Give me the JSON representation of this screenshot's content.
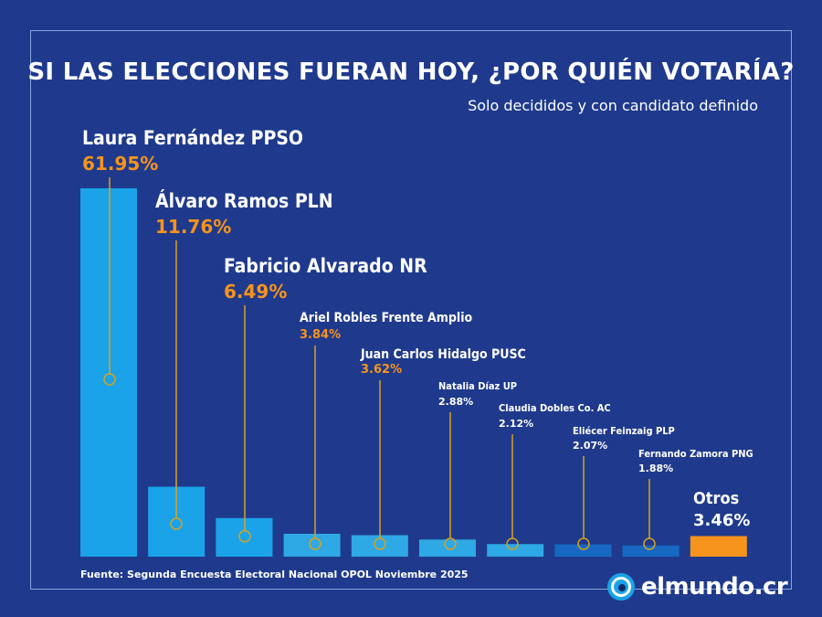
{
  "title": "SI LAS ELECCIONES FUERAN HOY, ¿POR QUIÉN VOTARÍA?",
  "subtitle": "Solo decididos y con candidato definido",
  "source": "Fuente: Segunda Encuesta Electoral Nacional OPOL Noviembre 2025",
  "logo_text": "elmundo.cr",
  "colors": {
    "background": "#1f3a8c",
    "bar_primary": "#1aa3e8",
    "bar_mid": "#2ea9e6",
    "bar_dark": "#1668c2",
    "bar_otros": "#f7941d",
    "value_highlight": "#f7941d",
    "leader_line": "#d9a11c"
  },
  "chart_data": {
    "type": "bar",
    "categories": [
      "Laura Fernández PPSO",
      "Álvaro Ramos PLN",
      "Fabricio Alvarado NR",
      "Ariel Robles Frente Amplio",
      "Juan Carlos Hidalgo PUSC",
      "Natalia Díaz UP",
      "Claudia Dobles Co. AC",
      "Eliécer Feinzaig PLP",
      "Fernando Zamora PNG",
      "Otros"
    ],
    "values": [
      61.95,
      11.76,
      6.49,
      3.84,
      3.62,
      2.88,
      2.12,
      2.07,
      1.88,
      3.46
    ],
    "value_labels": [
      "61.95%",
      "11.76%",
      "6.49%",
      "3.84%",
      "3.62%",
      "2.88%",
      "2.12%",
      "2.07%",
      "1.88%",
      "3.46%"
    ],
    "unit": "%",
    "ylim": [
      0,
      65
    ],
    "grid": false,
    "legend": "none"
  }
}
